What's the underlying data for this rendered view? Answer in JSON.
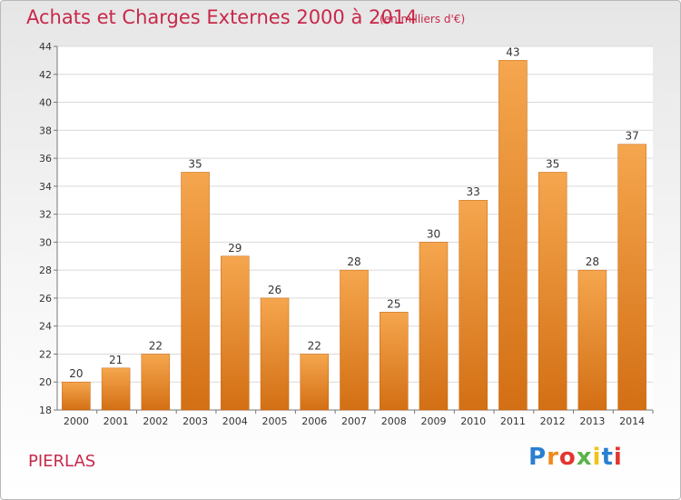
{
  "header": {
    "title": "Achats et Charges Externes 2000 à 2014",
    "subtitle": "(en milliers d'€)"
  },
  "footer": {
    "commune": "PIERLAS",
    "logo_letters": [
      "P",
      "r",
      "o",
      "x",
      "i",
      "t",
      "i"
    ]
  },
  "colors": {
    "title": "#c8284a",
    "bar_top": "#f5a64e",
    "bar_bottom": "#d36f14",
    "grid": "#d9d9d9"
  },
  "chart_data": {
    "type": "bar",
    "categories": [
      "2000",
      "2001",
      "2002",
      "2003",
      "2004",
      "2005",
      "2006",
      "2007",
      "2008",
      "2009",
      "2010",
      "2011",
      "2012",
      "2013",
      "2014"
    ],
    "values": [
      20,
      21,
      22,
      35,
      29,
      26,
      22,
      28,
      25,
      30,
      33,
      43,
      35,
      28,
      37
    ],
    "title": "Achats et Charges Externes 2000 à 2014",
    "subtitle": "(en milliers d'€)",
    "xlabel": "",
    "ylabel": "",
    "ylim": [
      18,
      44
    ],
    "yticks": [
      18,
      20,
      22,
      24,
      26,
      28,
      30,
      32,
      34,
      36,
      38,
      40,
      42,
      44
    ],
    "grid": true,
    "legend": "none"
  }
}
